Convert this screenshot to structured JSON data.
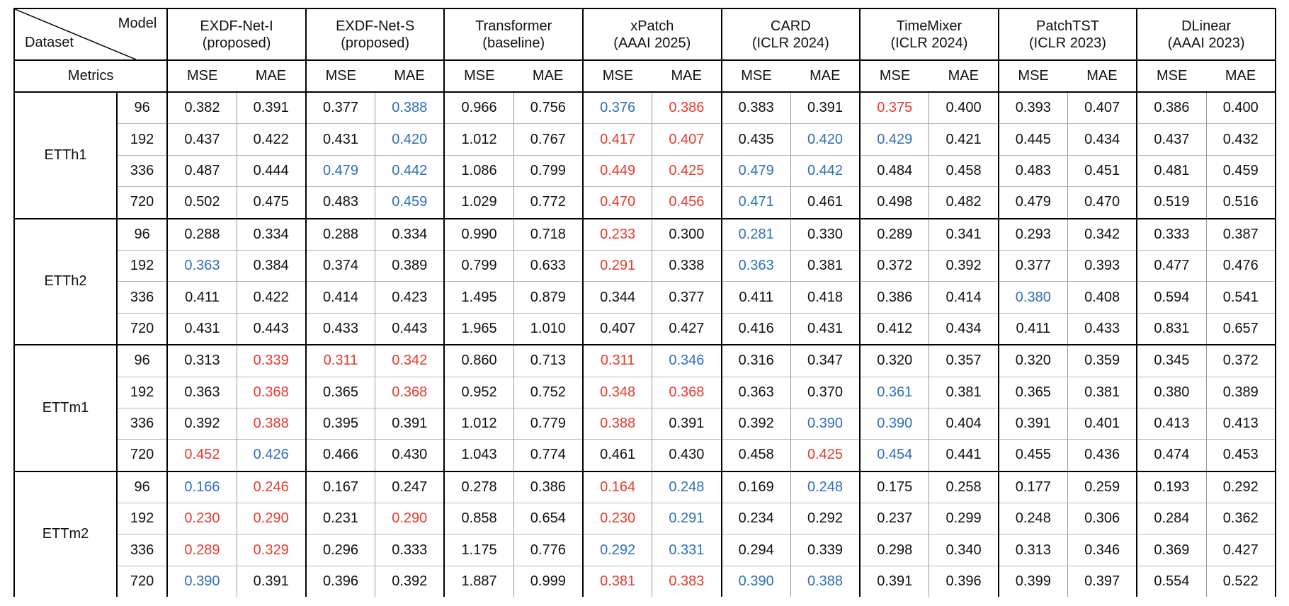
{
  "header": {
    "corner_model": "Model",
    "corner_dataset": "Dataset",
    "metrics_label": "Metrics",
    "models": [
      {
        "name": "EXDF-Net-I",
        "venue": "(proposed)"
      },
      {
        "name": "EXDF-Net-S",
        "venue": "(proposed)"
      },
      {
        "name": "Transformer",
        "venue": "(baseline)"
      },
      {
        "name": "xPatch",
        "venue": "(AAAI 2025)"
      },
      {
        "name": "CARD",
        "venue": "(ICLR 2024)"
      },
      {
        "name": "TimeMixer",
        "venue": "(ICLR 2024)"
      },
      {
        "name": "PatchTST",
        "venue": "(ICLR 2023)"
      },
      {
        "name": "DLinear",
        "venue": "(AAAI 2023)"
      }
    ],
    "metric_pair": [
      "MSE",
      "MAE"
    ]
  },
  "highlight_colors": {
    "best": "#e53a2e",
    "second": "#2e6fbd"
  },
  "groups": [
    {
      "dataset": "ETTh1",
      "rows": [
        {
          "horizon": "96",
          "values": [
            "0.382",
            "0.391",
            "0.377",
            "0.388",
            "0.966",
            "0.756",
            "0.376",
            "0.386",
            "0.383",
            "0.391",
            "0.375",
            "0.400",
            "0.393",
            "0.407",
            "0.386",
            "0.400"
          ],
          "marks": [
            "",
            "",
            "",
            "s",
            "",
            "",
            "s",
            "b",
            "",
            "",
            "b",
            "",
            "",
            "",
            "",
            ""
          ]
        },
        {
          "horizon": "192",
          "values": [
            "0.437",
            "0.422",
            "0.431",
            "0.420",
            "1.012",
            "0.767",
            "0.417",
            "0.407",
            "0.435",
            "0.420",
            "0.429",
            "0.421",
            "0.445",
            "0.434",
            "0.437",
            "0.432"
          ],
          "marks": [
            "",
            "",
            "",
            "s",
            "",
            "",
            "b",
            "b",
            "",
            "s",
            "s",
            "",
            "",
            "",
            "",
            ""
          ]
        },
        {
          "horizon": "336",
          "values": [
            "0.487",
            "0.444",
            "0.479",
            "0.442",
            "1.086",
            "0.799",
            "0.449",
            "0.425",
            "0.479",
            "0.442",
            "0.484",
            "0.458",
            "0.483",
            "0.451",
            "0.481",
            "0.459"
          ],
          "marks": [
            "",
            "",
            "s",
            "s",
            "",
            "",
            "b",
            "b",
            "s",
            "s",
            "",
            "",
            "",
            "",
            "",
            ""
          ]
        },
        {
          "horizon": "720",
          "values": [
            "0.502",
            "0.475",
            "0.483",
            "0.459",
            "1.029",
            "0.772",
            "0.470",
            "0.456",
            "0.471",
            "0.461",
            "0.498",
            "0.482",
            "0.479",
            "0.470",
            "0.519",
            "0.516"
          ],
          "marks": [
            "",
            "",
            "",
            "s",
            "",
            "",
            "b",
            "b",
            "s",
            "",
            "",
            "",
            "",
            "",
            "",
            ""
          ]
        }
      ]
    },
    {
      "dataset": "ETTh2",
      "rows": [
        {
          "horizon": "96",
          "values": [
            "0.288",
            "0.334",
            "0.288",
            "0.334",
            "0.990",
            "0.718",
            "0.233",
            "0.300",
            "0.281",
            "0.330",
            "0.289",
            "0.341",
            "0.293",
            "0.342",
            "0.333",
            "0.387"
          ],
          "marks": [
            "",
            "",
            "",
            "",
            "",
            "",
            "b",
            "",
            "s",
            "",
            "",
            "",
            "",
            "",
            "",
            ""
          ]
        },
        {
          "horizon": "192",
          "values": [
            "0.363",
            "0.384",
            "0.374",
            "0.389",
            "0.799",
            "0.633",
            "0.291",
            "0.338",
            "0.363",
            "0.381",
            "0.372",
            "0.392",
            "0.377",
            "0.393",
            "0.477",
            "0.476"
          ],
          "marks": [
            "s",
            "",
            "",
            "",
            "",
            "",
            "b",
            "",
            "s",
            "",
            "",
            "",
            "",
            "",
            "",
            ""
          ]
        },
        {
          "horizon": "336",
          "values": [
            "0.411",
            "0.422",
            "0.414",
            "0.423",
            "1.495",
            "0.879",
            "0.344",
            "0.377",
            "0.411",
            "0.418",
            "0.386",
            "0.414",
            "0.380",
            "0.408",
            "0.594",
            "0.541"
          ],
          "marks": [
            "",
            "",
            "",
            "",
            "",
            "",
            "",
            "",
            "",
            "",
            "",
            "",
            "s",
            "",
            "",
            ""
          ]
        },
        {
          "horizon": "720",
          "values": [
            "0.431",
            "0.443",
            "0.433",
            "0.443",
            "1.965",
            "1.010",
            "0.407",
            "0.427",
            "0.416",
            "0.431",
            "0.412",
            "0.434",
            "0.411",
            "0.433",
            "0.831",
            "0.657"
          ],
          "marks": [
            "",
            "",
            "",
            "",
            "",
            "",
            "",
            "",
            "",
            "",
            "",
            "",
            "",
            "",
            "",
            ""
          ]
        }
      ]
    },
    {
      "dataset": "ETTm1",
      "rows": [
        {
          "horizon": "96",
          "values": [
            "0.313",
            "0.339",
            "0.311",
            "0.342",
            "0.860",
            "0.713",
            "0.311",
            "0.346",
            "0.316",
            "0.347",
            "0.320",
            "0.357",
            "0.320",
            "0.359",
            "0.345",
            "0.372"
          ],
          "marks": [
            "",
            "b",
            "b",
            "b",
            "",
            "",
            "b",
            "s",
            "",
            "",
            "",
            "",
            "",
            "",
            "",
            ""
          ]
        },
        {
          "horizon": "192",
          "values": [
            "0.363",
            "0.368",
            "0.365",
            "0.368",
            "0.952",
            "0.752",
            "0.348",
            "0.368",
            "0.363",
            "0.370",
            "0.361",
            "0.381",
            "0.365",
            "0.381",
            "0.380",
            "0.389"
          ],
          "marks": [
            "",
            "b",
            "",
            "b",
            "",
            "",
            "b",
            "b",
            "",
            "",
            "s",
            "",
            "",
            "",
            "",
            ""
          ]
        },
        {
          "horizon": "336",
          "values": [
            "0.392",
            "0.388",
            "0.395",
            "0.391",
            "1.012",
            "0.779",
            "0.388",
            "0.391",
            "0.392",
            "0.390",
            "0.390",
            "0.404",
            "0.391",
            "0.401",
            "0.413",
            "0.413"
          ],
          "marks": [
            "",
            "b",
            "",
            "",
            "",
            "",
            "b",
            "",
            "",
            "s",
            "s",
            "",
            "",
            "",
            "",
            ""
          ]
        },
        {
          "horizon": "720",
          "values": [
            "0.452",
            "0.426",
            "0.466",
            "0.430",
            "1.043",
            "0.774",
            "0.461",
            "0.430",
            "0.458",
            "0.425",
            "0.454",
            "0.441",
            "0.455",
            "0.436",
            "0.474",
            "0.453"
          ],
          "marks": [
            "b",
            "s",
            "",
            "",
            "",
            "",
            "",
            "",
            "",
            "b",
            "s",
            "",
            "",
            "",
            "",
            ""
          ]
        }
      ]
    },
    {
      "dataset": "ETTm2",
      "rows": [
        {
          "horizon": "96",
          "values": [
            "0.166",
            "0.246",
            "0.167",
            "0.247",
            "0.278",
            "0.386",
            "0.164",
            "0.248",
            "0.169",
            "0.248",
            "0.175",
            "0.258",
            "0.177",
            "0.259",
            "0.193",
            "0.292"
          ],
          "marks": [
            "s",
            "b",
            "",
            "",
            "",
            "",
            "b",
            "s",
            "",
            "s",
            "",
            "",
            "",
            "",
            "",
            ""
          ]
        },
        {
          "horizon": "192",
          "values": [
            "0.230",
            "0.290",
            "0.231",
            "0.290",
            "0.858",
            "0.654",
            "0.230",
            "0.291",
            "0.234",
            "0.292",
            "0.237",
            "0.299",
            "0.248",
            "0.306",
            "0.284",
            "0.362"
          ],
          "marks": [
            "b",
            "b",
            "",
            "b",
            "",
            "",
            "b",
            "s",
            "",
            "",
            "",
            "",
            "",
            "",
            "",
            ""
          ]
        },
        {
          "horizon": "336",
          "values": [
            "0.289",
            "0.329",
            "0.296",
            "0.333",
            "1.175",
            "0.776",
            "0.292",
            "0.331",
            "0.294",
            "0.339",
            "0.298",
            "0.340",
            "0.313",
            "0.346",
            "0.369",
            "0.427"
          ],
          "marks": [
            "b",
            "b",
            "",
            "",
            "",
            "",
            "s",
            "s",
            "",
            "",
            "",
            "",
            "",
            "",
            "",
            ""
          ]
        },
        {
          "horizon": "720",
          "values": [
            "0.390",
            "0.391",
            "0.396",
            "0.392",
            "1.887",
            "0.999",
            "0.381",
            "0.383",
            "0.390",
            "0.388",
            "0.391",
            "0.396",
            "0.399",
            "0.397",
            "0.554",
            "0.522"
          ],
          "marks": [
            "s",
            "",
            "",
            "",
            "",
            "",
            "b",
            "b",
            "s",
            "s",
            "",
            "",
            "",
            "",
            "",
            ""
          ]
        }
      ]
    }
  ]
}
